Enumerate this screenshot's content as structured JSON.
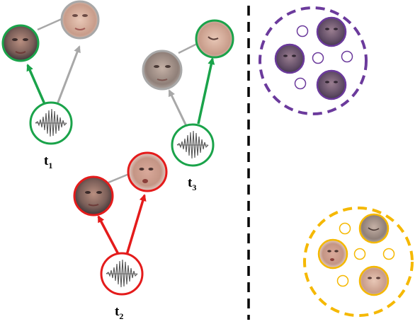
{
  "colors": {
    "green": "#1aa34a",
    "gray": "#a8a8a8",
    "red": "#e41b1b",
    "purple": "#6b3a9c",
    "orange": "#f5b800",
    "divider": "#000000"
  },
  "time_labels": [
    {
      "base": "t",
      "sub": "1"
    },
    {
      "base": "t",
      "sub": "2"
    },
    {
      "base": "t",
      "sub": "3"
    }
  ],
  "icons": {
    "audio": "audio-waveform-icon",
    "face": "face-photo-icon"
  },
  "clusters": [
    {
      "name": "speaker-cluster-purple",
      "faces": 3,
      "small_nodes": 4
    },
    {
      "name": "speaker-cluster-orange",
      "faces": 3,
      "small_nodes": 4
    }
  ]
}
